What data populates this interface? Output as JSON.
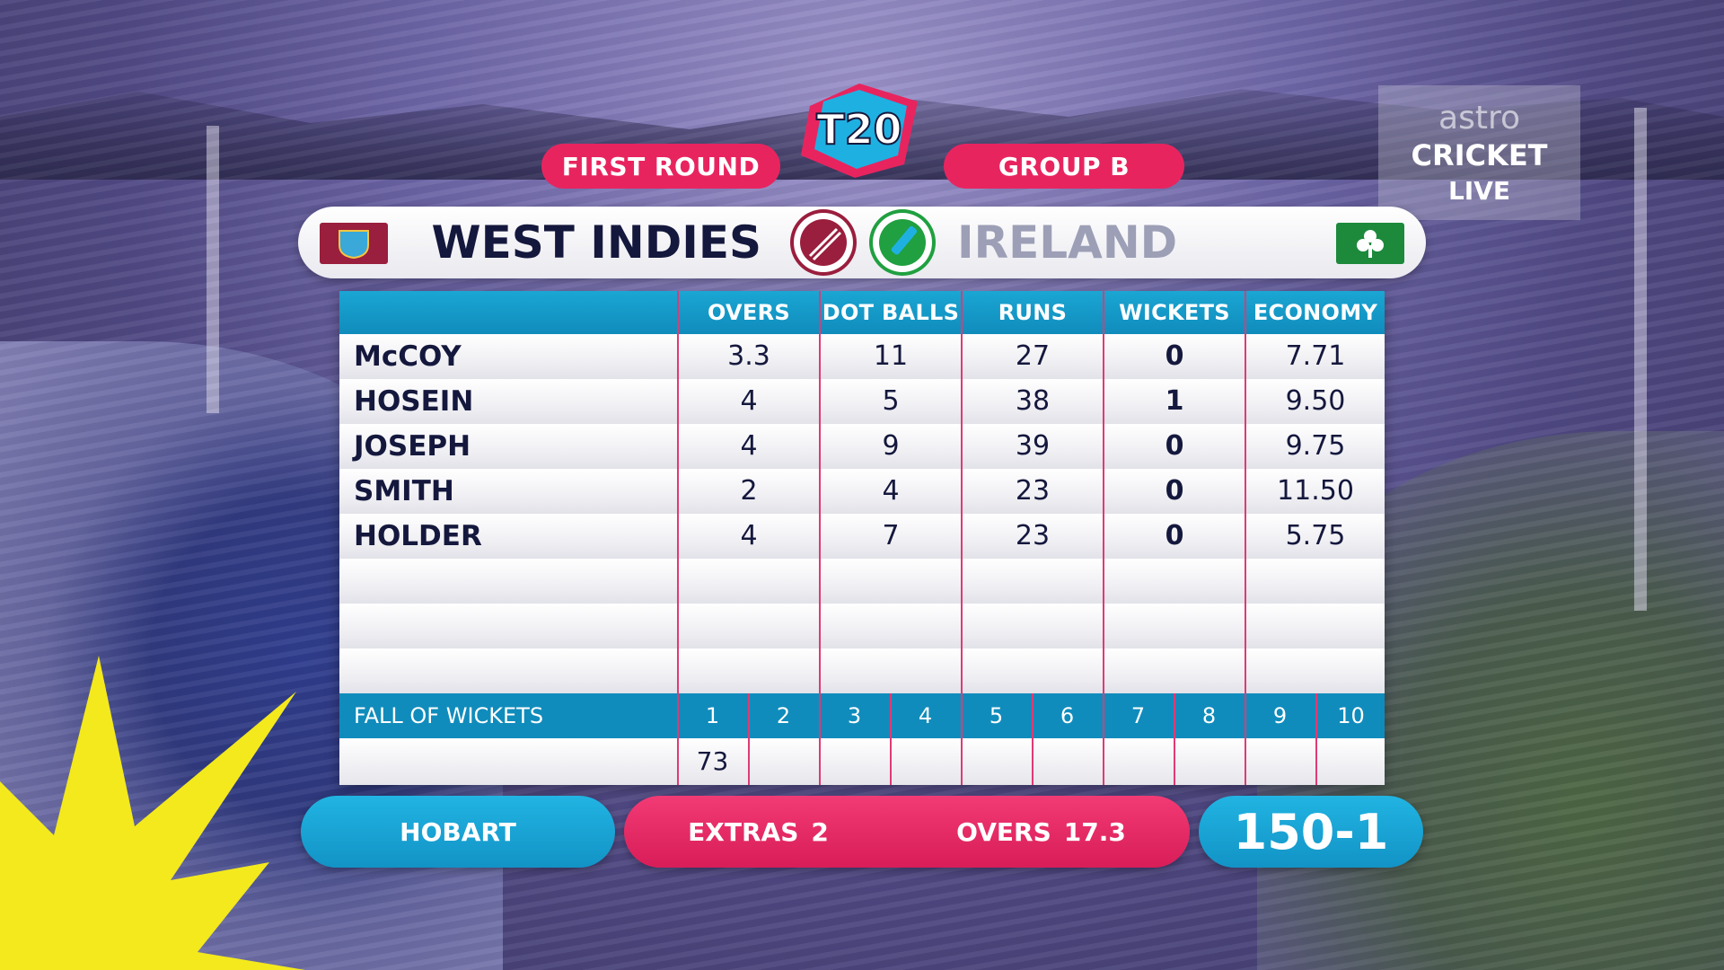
{
  "header": {
    "stage": "FIRST ROUND",
    "group": "GROUP B",
    "logo_text": "T20"
  },
  "broadcaster": {
    "brand": "astro",
    "channel": "CRICKET",
    "status": "LIVE"
  },
  "teams": {
    "batting": "WEST INDIES",
    "bowling": "IRELAND"
  },
  "table": {
    "columns": [
      "OVERS",
      "DOT BALLS",
      "RUNS",
      "WICKETS",
      "ECONOMY"
    ],
    "rows": [
      {
        "name": "McCOY",
        "overs": "3.3",
        "dots": "11",
        "runs": "27",
        "wickets": "0",
        "economy": "7.71"
      },
      {
        "name": "HOSEIN",
        "overs": "4",
        "dots": "5",
        "runs": "38",
        "wickets": "1",
        "economy": "9.50"
      },
      {
        "name": "JOSEPH",
        "overs": "4",
        "dots": "9",
        "runs": "39",
        "wickets": "0",
        "economy": "9.75"
      },
      {
        "name": "SMITH",
        "overs": "2",
        "dots": "4",
        "runs": "23",
        "wickets": "0",
        "economy": "11.50"
      },
      {
        "name": "HOLDER",
        "overs": "4",
        "dots": "7",
        "runs": "23",
        "wickets": "0",
        "economy": "5.75"
      }
    ]
  },
  "fall_of_wickets": {
    "label": "FALL OF WICKETS",
    "numbers": [
      "1",
      "2",
      "3",
      "4",
      "5",
      "6",
      "7",
      "8",
      "9",
      "10"
    ],
    "values": [
      "73",
      "",
      "",
      "",
      "",
      "",
      "",
      "",
      "",
      ""
    ]
  },
  "footer": {
    "venue": "HOBART",
    "extras_label": "EXTRAS",
    "extras_value": "2",
    "overs_label": "OVERS",
    "overs_value": "17.3",
    "score": "150-1"
  },
  "colors": {
    "pink": "#e8245f",
    "blue": "#1293c6",
    "navy": "#15183d"
  }
}
